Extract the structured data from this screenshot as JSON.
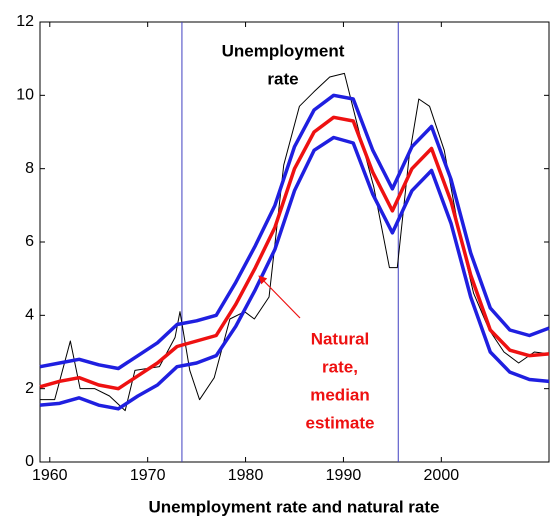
{
  "chart_data": {
    "type": "line",
    "xlabel": "Unemployment rate and natural rate",
    "xlim": [
      1959,
      2011
    ],
    "xticks": [
      1960,
      1970,
      1980,
      1990,
      2000
    ],
    "ylim": [
      0,
      12
    ],
    "yticks": [
      0,
      2,
      4,
      6,
      8,
      10,
      12
    ],
    "vlines": [
      1973.5,
      1995.6
    ],
    "vline_color": "#4040c0",
    "x": [
      1959,
      1961,
      1963,
      1965,
      1967,
      1969,
      1971,
      1973,
      1975,
      1977,
      1979,
      1981,
      1983,
      1985,
      1987,
      1989,
      1991,
      1993,
      1995,
      1997,
      1999,
      2001,
      2003,
      2005,
      2007,
      2009,
      2011
    ],
    "series": [
      {
        "color": "#000000",
        "width": 1,
        "x": [
          1959,
          1960.5,
          1962.1,
          1963.1,
          1964.6,
          1966.1,
          1967.7,
          1968.7,
          1971.2,
          1972.8,
          1973.3,
          1974.3,
          1975.3,
          1976.8,
          1978.4,
          1979.9,
          1980.9,
          1982.4,
          1983.9,
          1985.5,
          1987,
          1988.6,
          1990.1,
          1991.6,
          1993.1,
          1994.7,
          1995.5,
          1996.7,
          1997.7,
          1998.8,
          2000.3,
          2001.8,
          2003.3,
          2004.9,
          2006.4,
          2007.9,
          2009.5,
          2011
        ],
        "values": [
          1.7,
          1.7,
          3.3,
          2.0,
          2.0,
          1.8,
          1.4,
          2.5,
          2.6,
          3.4,
          4.1,
          2.5,
          1.7,
          2.3,
          3.9,
          4.1,
          3.9,
          4.5,
          8.1,
          9.7,
          10.1,
          10.5,
          10.6,
          9.0,
          7.5,
          5.3,
          5.3,
          8.3,
          9.9,
          9.7,
          8.5,
          6.3,
          4.6,
          3.6,
          3.0,
          2.7,
          3.0,
          2.95
        ]
      },
      {
        "color": "#1f1fe0",
        "width": 3.5,
        "values": [
          2.6,
          2.7,
          2.8,
          2.65,
          2.55,
          2.9,
          3.25,
          3.75,
          3.85,
          4.0,
          4.9,
          5.9,
          7.0,
          8.6,
          9.6,
          10.0,
          9.9,
          8.5,
          7.45,
          8.6,
          9.15,
          7.7,
          5.7,
          4.2,
          3.6,
          3.45,
          3.65
        ]
      },
      {
        "color": "#1f1fe0",
        "width": 3.5,
        "values": [
          1.55,
          1.6,
          1.75,
          1.55,
          1.45,
          1.8,
          2.1,
          2.6,
          2.7,
          2.9,
          3.7,
          4.7,
          5.8,
          7.4,
          8.5,
          8.85,
          8.7,
          7.3,
          6.25,
          7.4,
          7.95,
          6.5,
          4.5,
          3.0,
          2.45,
          2.25,
          2.2
        ]
      },
      {
        "color": "#ee1111",
        "width": 3.5,
        "values": [
          2.05,
          2.2,
          2.3,
          2.1,
          2.0,
          2.35,
          2.7,
          3.15,
          3.3,
          3.45,
          4.3,
          5.3,
          6.4,
          8.0,
          9.0,
          9.4,
          9.3,
          7.9,
          6.85,
          8.0,
          8.55,
          7.1,
          5.1,
          3.6,
          3.05,
          2.9,
          2.95
        ]
      }
    ],
    "annotations": [
      {
        "lines": [
          "Unemployment",
          "rate"
        ],
        "color": "#000000"
      },
      {
        "lines": [
          "Natural",
          "rate,",
          "median",
          "estimate"
        ],
        "color": "#ee1111"
      }
    ]
  }
}
